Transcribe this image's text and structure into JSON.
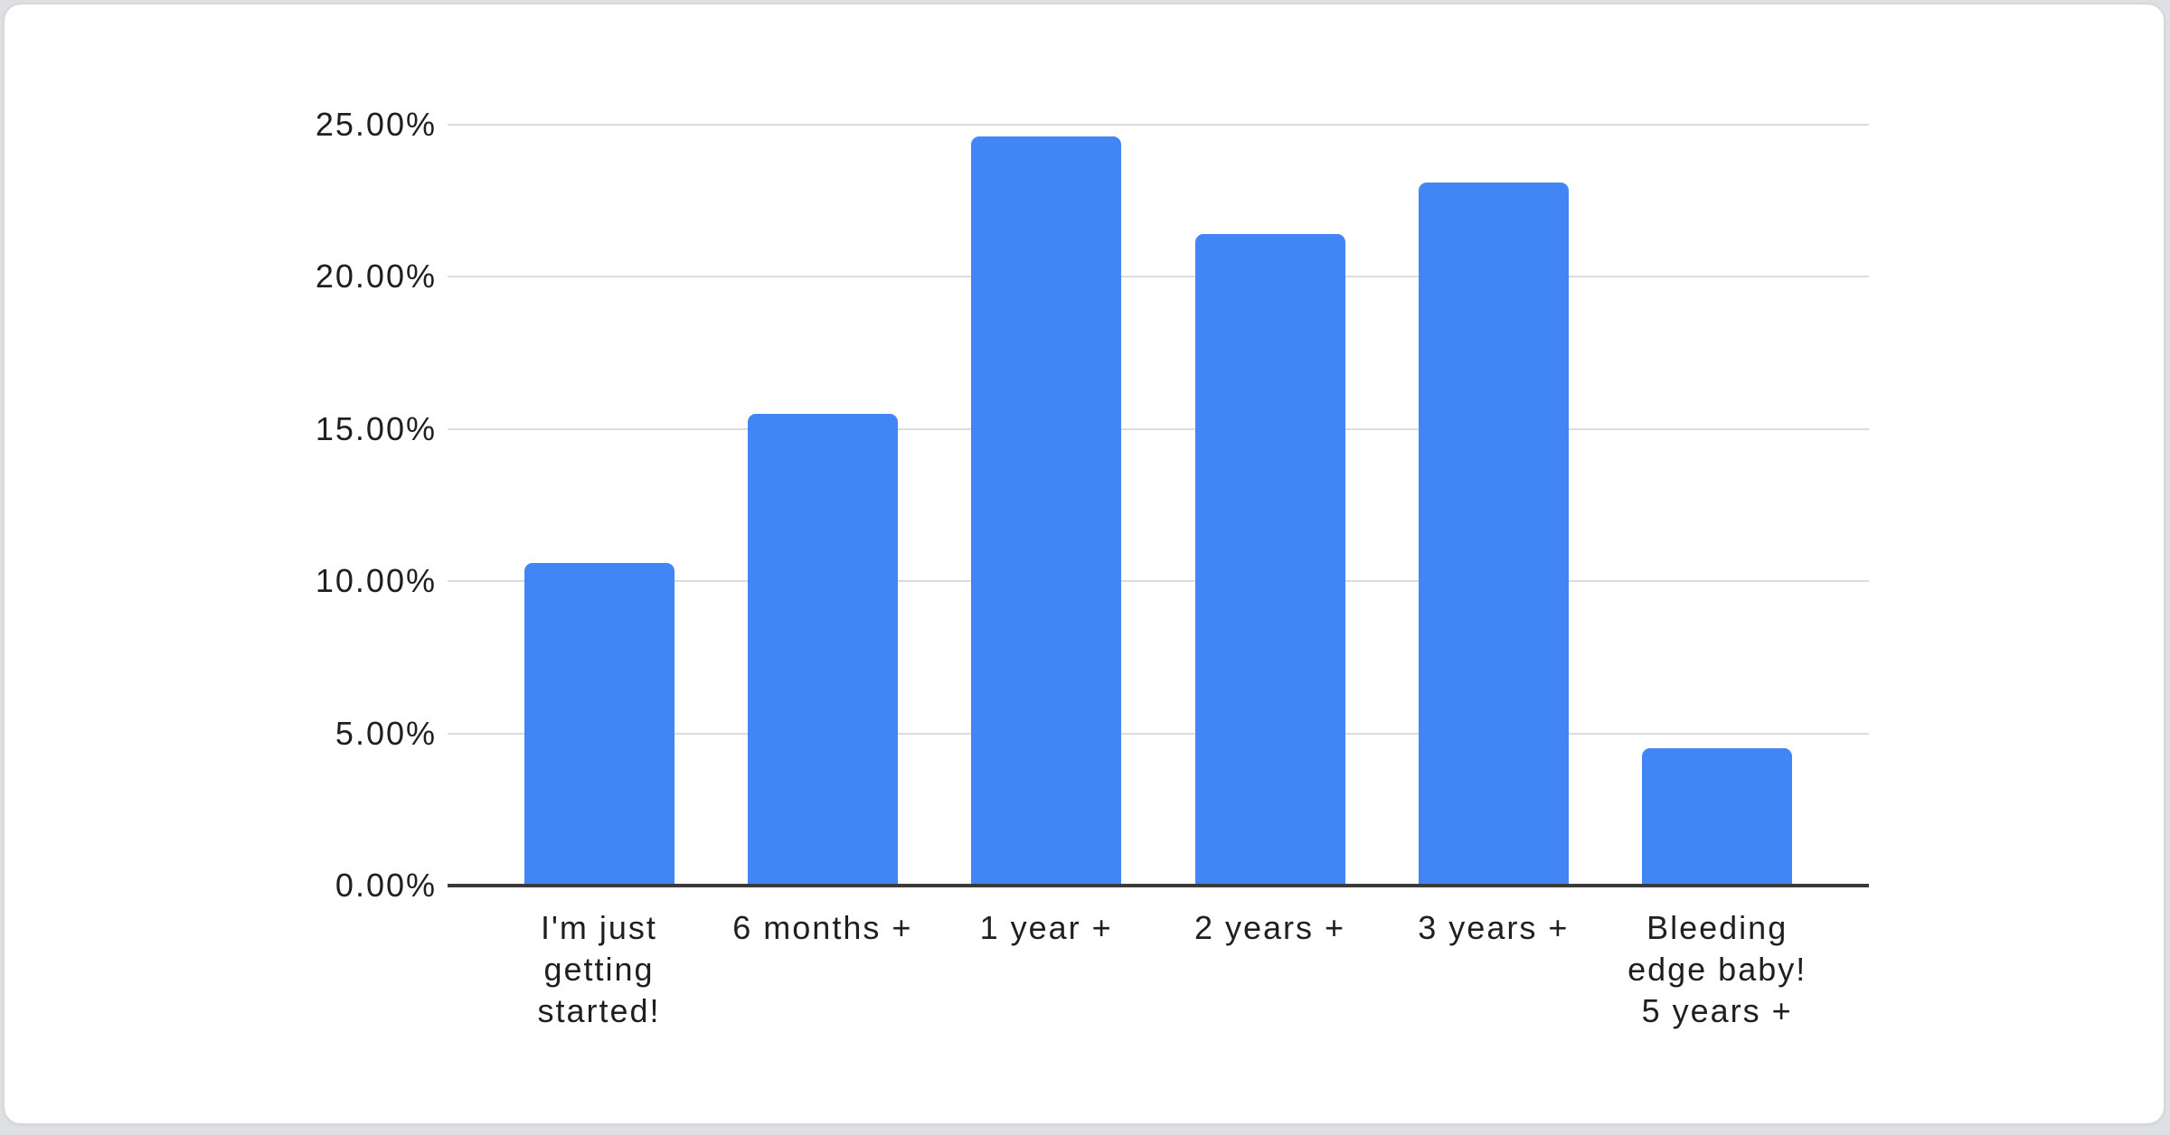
{
  "page": {
    "background_color": "#dee0e4",
    "card_background": "#ffffff",
    "card_border_color": "#d6d8dc"
  },
  "chart_data": {
    "type": "bar",
    "title": "",
    "xlabel": "",
    "ylabel": "",
    "categories": [
      "I'm just getting started!",
      "6 months +",
      "1 year +",
      "2 years +",
      "3 years +",
      "Bleeding edge baby! 5 years +"
    ],
    "category_display": [
      "I'm just\ngetting\nstarted!",
      "6 months +",
      "1 year +",
      "2 years +",
      "3 years +",
      "Bleeding\nedge baby!\n5 years +"
    ],
    "values": [
      10.6,
      15.5,
      24.6,
      21.4,
      23.1,
      4.5
    ],
    "unit": "%",
    "ylim": [
      0,
      25
    ],
    "y_tick_values": [
      0,
      5,
      10,
      15,
      20,
      25
    ],
    "y_tick_labels": [
      "0.00%",
      "5.00%",
      "10.00%",
      "15.00%",
      "20.00%",
      "25.00%"
    ],
    "grid": true,
    "legend": "none",
    "bar_color": "#4285F4",
    "gridline_color": "#dcdcdc",
    "axis_line_color": "#3a3a3a",
    "label_color": "#1f1f1f"
  }
}
